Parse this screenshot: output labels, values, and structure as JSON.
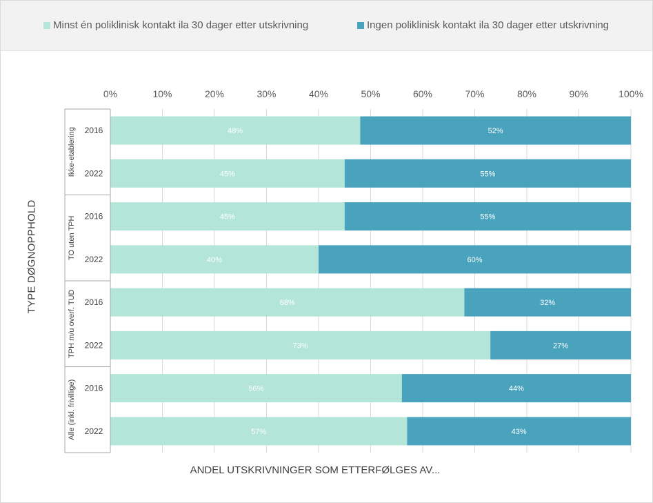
{
  "chart_data": {
    "type": "bar",
    "orientation": "horizontal",
    "stacked": "percent",
    "title": "",
    "xlabel": "ANDEL UTSKRIVNINGER SOM ETTERFØLGES AV...",
    "ylabel": "TYPE DØGNOPPHOLD",
    "xlim": [
      0,
      100
    ],
    "x_ticks": [
      "0%",
      "10%",
      "20%",
      "30%",
      "40%",
      "50%",
      "60%",
      "70%",
      "80%",
      "90%",
      "100%"
    ],
    "legend_position": "top",
    "groups": [
      {
        "name": "Ikke-etablering",
        "categories": [
          "2016",
          "2022"
        ]
      },
      {
        "name": "TO uten TPH",
        "categories": [
          "2016",
          "2022"
        ]
      },
      {
        "name": "TPH m/u overf. TUD",
        "categories": [
          "2016",
          "2022"
        ]
      },
      {
        "name": "Alle (inkl. frivillige)",
        "categories": [
          "2016",
          "2022"
        ]
      }
    ],
    "series": [
      {
        "name": "Minst én poliklinisk kontakt ila 30 dager etter utskrivning",
        "color": "#b3e6d9",
        "label_color": "#ffffff",
        "values": [
          48,
          45,
          45,
          40,
          68,
          73,
          56,
          57
        ],
        "labels": [
          "48%",
          "45%",
          "45%",
          "40%",
          "68%",
          "73%",
          "56%",
          "57%"
        ]
      },
      {
        "name": "Ingen poliklinisk kontakt ila 30 dager etter utskrivning",
        "color": "#4aa3bd",
        "label_color": "#ffffff",
        "values": [
          52,
          55,
          55,
          60,
          32,
          27,
          44,
          43
        ],
        "labels": [
          "52%",
          "55%",
          "55%",
          "60%",
          "32%",
          "27%",
          "44%",
          "43%"
        ]
      }
    ]
  }
}
